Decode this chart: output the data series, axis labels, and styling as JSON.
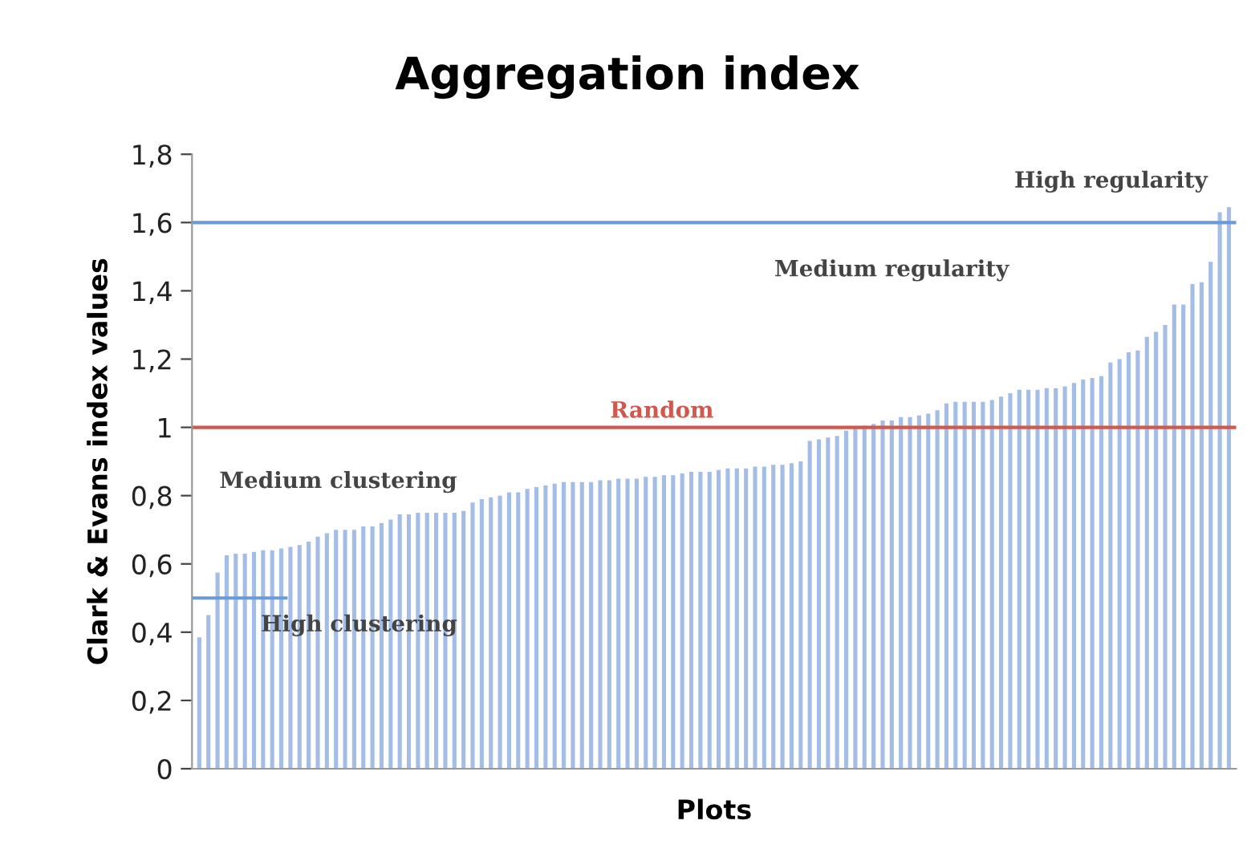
{
  "chart_data": {
    "type": "bar",
    "title": "Aggregation index",
    "xlabel": "Plots",
    "ylabel": "Clark & Evans index values",
    "categories": [
      null,
      null,
      null,
      null,
      null,
      null,
      null,
      null,
      null,
      null,
      null,
      null,
      null,
      null,
      null,
      null,
      null,
      null,
      null,
      null,
      null,
      null,
      null,
      null,
      null,
      null,
      null,
      null,
      null,
      null,
      null,
      null,
      null,
      null,
      null,
      null,
      null,
      null,
      null,
      null,
      null,
      null,
      null,
      null,
      null,
      null,
      null,
      null,
      null,
      null,
      null,
      null,
      null,
      null,
      null,
      null,
      null,
      null,
      null,
      null,
      null,
      null,
      null,
      null,
      null,
      null,
      null,
      null,
      null,
      null,
      null,
      null,
      null,
      null,
      null,
      null,
      null,
      null,
      null,
      null,
      null,
      null,
      null,
      null,
      null,
      null,
      null,
      null,
      null,
      null,
      null,
      null,
      null,
      null,
      null,
      null,
      null,
      null,
      null,
      null,
      null,
      null,
      null,
      null,
      null,
      null,
      null,
      null,
      null,
      null,
      null,
      null,
      null,
      null
    ],
    "values": [
      0.385,
      0.45,
      0.575,
      0.625,
      0.63,
      0.63,
      0.635,
      0.64,
      0.64,
      0.645,
      0.65,
      0.655,
      0.665,
      0.68,
      0.69,
      0.7,
      0.7,
      0.7,
      0.71,
      0.71,
      0.72,
      0.73,
      0.745,
      0.745,
      0.75,
      0.75,
      0.75,
      0.75,
      0.75,
      0.755,
      0.78,
      0.79,
      0.795,
      0.8,
      0.81,
      0.81,
      0.82,
      0.825,
      0.83,
      0.835,
      0.84,
      0.84,
      0.84,
      0.84,
      0.845,
      0.845,
      0.85,
      0.85,
      0.85,
      0.855,
      0.855,
      0.86,
      0.86,
      0.865,
      0.87,
      0.87,
      0.87,
      0.875,
      0.88,
      0.88,
      0.88,
      0.885,
      0.885,
      0.89,
      0.89,
      0.895,
      0.9,
      0.96,
      0.965,
      0.97,
      0.975,
      0.99,
      1.0,
      1.005,
      1.01,
      1.02,
      1.02,
      1.03,
      1.03,
      1.035,
      1.04,
      1.05,
      1.07,
      1.075,
      1.075,
      1.075,
      1.075,
      1.08,
      1.09,
      1.1,
      1.11,
      1.11,
      1.11,
      1.115,
      1.115,
      1.12,
      1.13,
      1.14,
      1.145,
      1.15,
      1.19,
      1.2,
      1.22,
      1.225,
      1.265,
      1.28,
      1.3,
      1.36,
      1.36,
      1.42,
      1.425,
      1.485,
      1.63,
      1.645
    ],
    "color": "#a3bde6",
    "ylim": [
      0,
      1.8
    ],
    "yticks": [
      {
        "value": 0,
        "label": "0"
      },
      {
        "value": 0.2,
        "label": "0,2"
      },
      {
        "value": 0.4,
        "label": "0,4"
      },
      {
        "value": 0.6,
        "label": "0,6"
      },
      {
        "value": 0.8,
        "label": "0,8"
      },
      {
        "value": 1,
        "label": "1"
      },
      {
        "value": 1.2,
        "label": "1,2"
      },
      {
        "value": 1.4,
        "label": "1,4"
      },
      {
        "value": 1.6,
        "label": "1,6"
      },
      {
        "value": 1.8,
        "label": "1,8"
      }
    ],
    "ref_lines": [
      {
        "axis": "y",
        "value": 1.6,
        "color": "#6a9bd8"
      },
      {
        "axis": "y",
        "value": 1,
        "label": "Random",
        "color": "#d0584e"
      },
      {
        "axis": "y",
        "value": 0.5,
        "color": "#6a9bd8"
      }
    ],
    "annotations": [
      "High regularity",
      "Medium regularity",
      "Medium clustering",
      "High clustering"
    ],
    "grid": false,
    "legend": false
  }
}
